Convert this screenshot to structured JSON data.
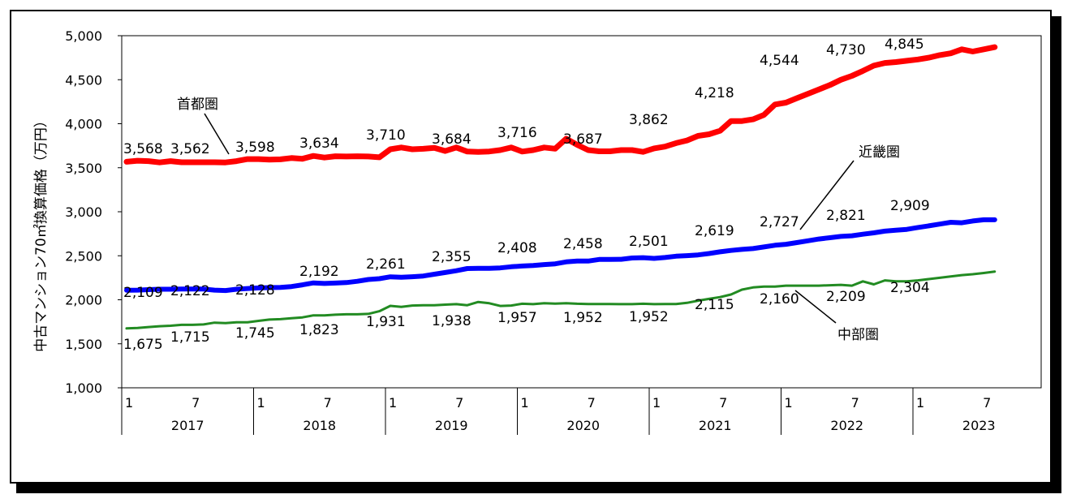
{
  "chart_data": {
    "type": "line",
    "title": "",
    "ylabel": "中古マンション70㎡換算価格（万円）",
    "xlabel": "",
    "ylim": [
      1000,
      5000
    ],
    "ytick_values": [
      1000,
      1500,
      2000,
      2500,
      3000,
      3500,
      4000,
      4500,
      5000
    ],
    "ytick_labels": [
      "1,000",
      "1,500",
      "2,000",
      "2,500",
      "3,000",
      "3,500",
      "4,000",
      "4,500",
      "5,000"
    ],
    "x_month_labels": [
      "1",
      "7"
    ],
    "years": [
      "2017",
      "2018",
      "2019",
      "2020",
      "2021",
      "2022",
      "2023"
    ],
    "grid": false,
    "series": [
      {
        "name": "首都圏",
        "color": "#ff0000",
        "width": 7,
        "values": [
          3568,
          3580,
          3575,
          3560,
          3575,
          3562,
          3562,
          3562,
          3562,
          3560,
          3575,
          3598,
          3598,
          3592,
          3595,
          3610,
          3602,
          3634,
          3616,
          3630,
          3628,
          3630,
          3628,
          3618,
          3710,
          3730,
          3710,
          3715,
          3725,
          3690,
          3730,
          3684,
          3680,
          3685,
          3700,
          3730,
          3684,
          3700,
          3730,
          3716,
          3830,
          3760,
          3700,
          3687,
          3687,
          3700,
          3700,
          3680,
          3720,
          3740,
          3780,
          3810,
          3862,
          3880,
          3920,
          4030,
          4030,
          4050,
          4100,
          4218,
          4240,
          4290,
          4340,
          4390,
          4440,
          4500,
          4544,
          4600,
          4660,
          4690,
          4700,
          4715,
          4730,
          4750,
          4780,
          4800,
          4845,
          4820,
          4845,
          4870
        ]
      },
      {
        "name": "近畿圏",
        "color": "#0000ff",
        "width": 6,
        "values": [
          2109,
          2110,
          2115,
          2120,
          2120,
          2122,
          2122,
          2122,
          2110,
          2105,
          2120,
          2128,
          2135,
          2138,
          2140,
          2150,
          2170,
          2192,
          2185,
          2190,
          2195,
          2210,
          2230,
          2240,
          2261,
          2255,
          2262,
          2270,
          2290,
          2310,
          2330,
          2355,
          2358,
          2358,
          2362,
          2375,
          2383,
          2390,
          2400,
          2408,
          2430,
          2440,
          2440,
          2458,
          2458,
          2460,
          2475,
          2478,
          2470,
          2480,
          2495,
          2501,
          2510,
          2525,
          2545,
          2560,
          2572,
          2582,
          2600,
          2619,
          2630,
          2650,
          2670,
          2690,
          2705,
          2720,
          2727,
          2745,
          2760,
          2780,
          2790,
          2800,
          2821,
          2840,
          2860,
          2880,
          2875,
          2895,
          2909,
          2909
        ]
      },
      {
        "name": "中部圏",
        "color": "#228B22",
        "width": 3,
        "values": [
          1675,
          1680,
          1690,
          1700,
          1705,
          1715,
          1715,
          1720,
          1740,
          1735,
          1745,
          1745,
          1760,
          1775,
          1780,
          1790,
          1800,
          1823,
          1823,
          1830,
          1835,
          1835,
          1840,
          1870,
          1931,
          1920,
          1935,
          1938,
          1938,
          1945,
          1950,
          1938,
          1975,
          1960,
          1930,
          1935,
          1955,
          1950,
          1960,
          1957,
          1960,
          1955,
          1952,
          1952,
          1952,
          1950,
          1950,
          1955,
          1950,
          1952,
          1952,
          1965,
          1990,
          2010,
          2030,
          2060,
          2115,
          2140,
          2150,
          2150,
          2160,
          2160,
          2160,
          2160,
          2165,
          2170,
          2160,
          2209,
          2175,
          2220,
          2209,
          2210,
          2220,
          2235,
          2250,
          2265,
          2280,
          2290,
          2304,
          2320
        ]
      }
    ],
    "data_labels": [
      {
        "series": "首都圏",
        "text": "3,568",
        "value": 3568
      },
      {
        "series": "首都圏",
        "text": "3,562",
        "value": 3562
      },
      {
        "series": "首都圏",
        "text": "3,598",
        "value": 3598
      },
      {
        "series": "首都圏",
        "text": "3,634",
        "value": 3634
      },
      {
        "series": "首都圏",
        "text": "3,710",
        "value": 3710
      },
      {
        "series": "首都圏",
        "text": "3,684",
        "value": 3684
      },
      {
        "series": "首都圏",
        "text": "3,716",
        "value": 3716
      },
      {
        "series": "首都圏",
        "text": "3,687",
        "value": 3687
      },
      {
        "series": "首都圏",
        "text": "3,862",
        "value": 3862
      },
      {
        "series": "首都圏",
        "text": "4,218",
        "value": 4218
      },
      {
        "series": "首都圏",
        "text": "4,544",
        "value": 4544
      },
      {
        "series": "首都圏",
        "text": "4,730",
        "value": 4730
      },
      {
        "series": "首都圏",
        "text": "4,845",
        "value": 4845
      },
      {
        "series": "近畿圏",
        "text": "2,109",
        "value": 2109
      },
      {
        "series": "近畿圏",
        "text": "2,122",
        "value": 2122
      },
      {
        "series": "近畿圏",
        "text": "2,128",
        "value": 2128
      },
      {
        "series": "近畿圏",
        "text": "2,192",
        "value": 2192
      },
      {
        "series": "近畿圏",
        "text": "2,261",
        "value": 2261
      },
      {
        "series": "近畿圏",
        "text": "2,355",
        "value": 2355
      },
      {
        "series": "近畿圏",
        "text": "2,408",
        "value": 2408
      },
      {
        "series": "近畿圏",
        "text": "2,458",
        "value": 2458
      },
      {
        "series": "近畿圏",
        "text": "2,501",
        "value": 2501
      },
      {
        "series": "近畿圏",
        "text": "2,619",
        "value": 2619
      },
      {
        "series": "近畿圏",
        "text": "2,727",
        "value": 2727
      },
      {
        "series": "近畿圏",
        "text": "2,821",
        "value": 2821
      },
      {
        "series": "近畿圏",
        "text": "2,909",
        "value": 2909
      },
      {
        "series": "中部圏",
        "text": "1,675",
        "value": 1675
      },
      {
        "series": "中部圏",
        "text": "1,715",
        "value": 1715
      },
      {
        "series": "中部圏",
        "text": "1,745",
        "value": 1745
      },
      {
        "series": "中部圏",
        "text": "1,823",
        "value": 1823
      },
      {
        "series": "中部圏",
        "text": "1,931",
        "value": 1931
      },
      {
        "series": "中部圏",
        "text": "1,938",
        "value": 1938
      },
      {
        "series": "中部圏",
        "text": "1,957",
        "value": 1957
      },
      {
        "series": "中部圏",
        "text": "1,952",
        "value": 1952
      },
      {
        "series": "中部圏",
        "text": "1,952",
        "value": 1952
      },
      {
        "series": "中部圏",
        "text": "2,115",
        "value": 2115
      },
      {
        "series": "中部圏",
        "text": "2,160",
        "value": 2160
      },
      {
        "series": "中部圏",
        "text": "2,209",
        "value": 2209
      },
      {
        "series": "中部圏",
        "text": "2,304",
        "value": 2304
      }
    ]
  }
}
